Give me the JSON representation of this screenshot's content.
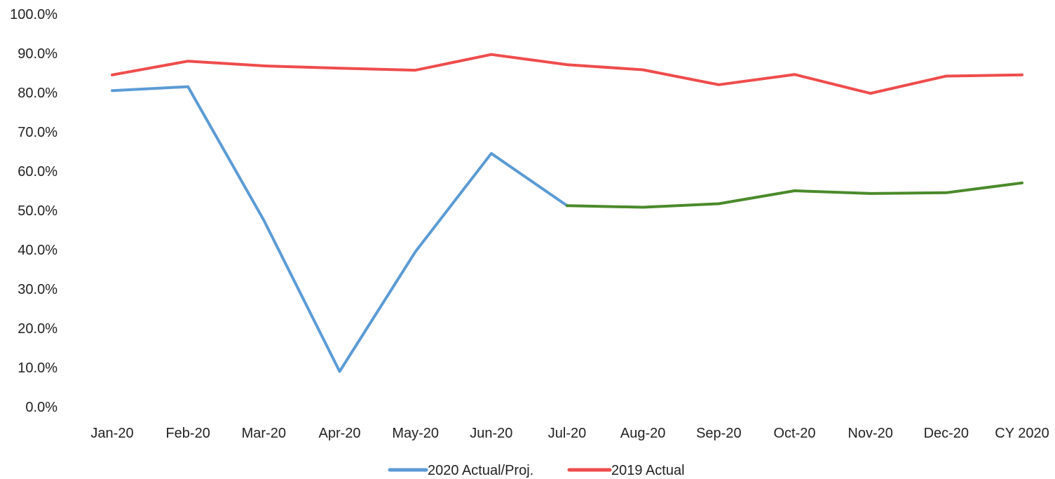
{
  "chart_data": {
    "type": "line",
    "title": "",
    "xlabel": "",
    "ylabel": "",
    "categories": [
      "Jan-20",
      "Feb-20",
      "Mar-20",
      "Apr-20",
      "May-20",
      "Jun-20",
      "Jul-20",
      "Aug-20",
      "Sep-20",
      "Oct-20",
      "Nov-20",
      "Dec-20",
      "CY 2020"
    ],
    "ylim": [
      0,
      100
    ],
    "y_ticks": [
      "0.0%",
      "10.0%",
      "20.0%",
      "30.0%",
      "40.0%",
      "50.0%",
      "60.0%",
      "70.0%",
      "80.0%",
      "90.0%",
      "100.0%"
    ],
    "y_tick_values": [
      0,
      10,
      20,
      30,
      40,
      50,
      60,
      70,
      80,
      90,
      100
    ],
    "grid": false,
    "legend_position": "bottom",
    "series": [
      {
        "name": "2020 Actual/Proj.",
        "color": "#5b9bd5",
        "values": [
          80.5,
          81.5,
          47.5,
          9.0,
          39.5,
          64.5,
          51.2,
          50.8,
          51.7,
          55.0,
          54.3,
          54.5,
          57.0
        ],
        "segments": [
          {
            "from": 0,
            "to": 6,
            "color": "#5b9bd5"
          },
          {
            "from": 6,
            "to": 12,
            "color": "#4a8a2a"
          }
        ]
      },
      {
        "name": "2019 Actual",
        "color": "#ef4c4c",
        "values": [
          84.5,
          88.0,
          86.8,
          86.2,
          85.7,
          89.7,
          87.1,
          85.8,
          82.0,
          84.6,
          79.8,
          84.2,
          84.5
        ]
      }
    ]
  }
}
